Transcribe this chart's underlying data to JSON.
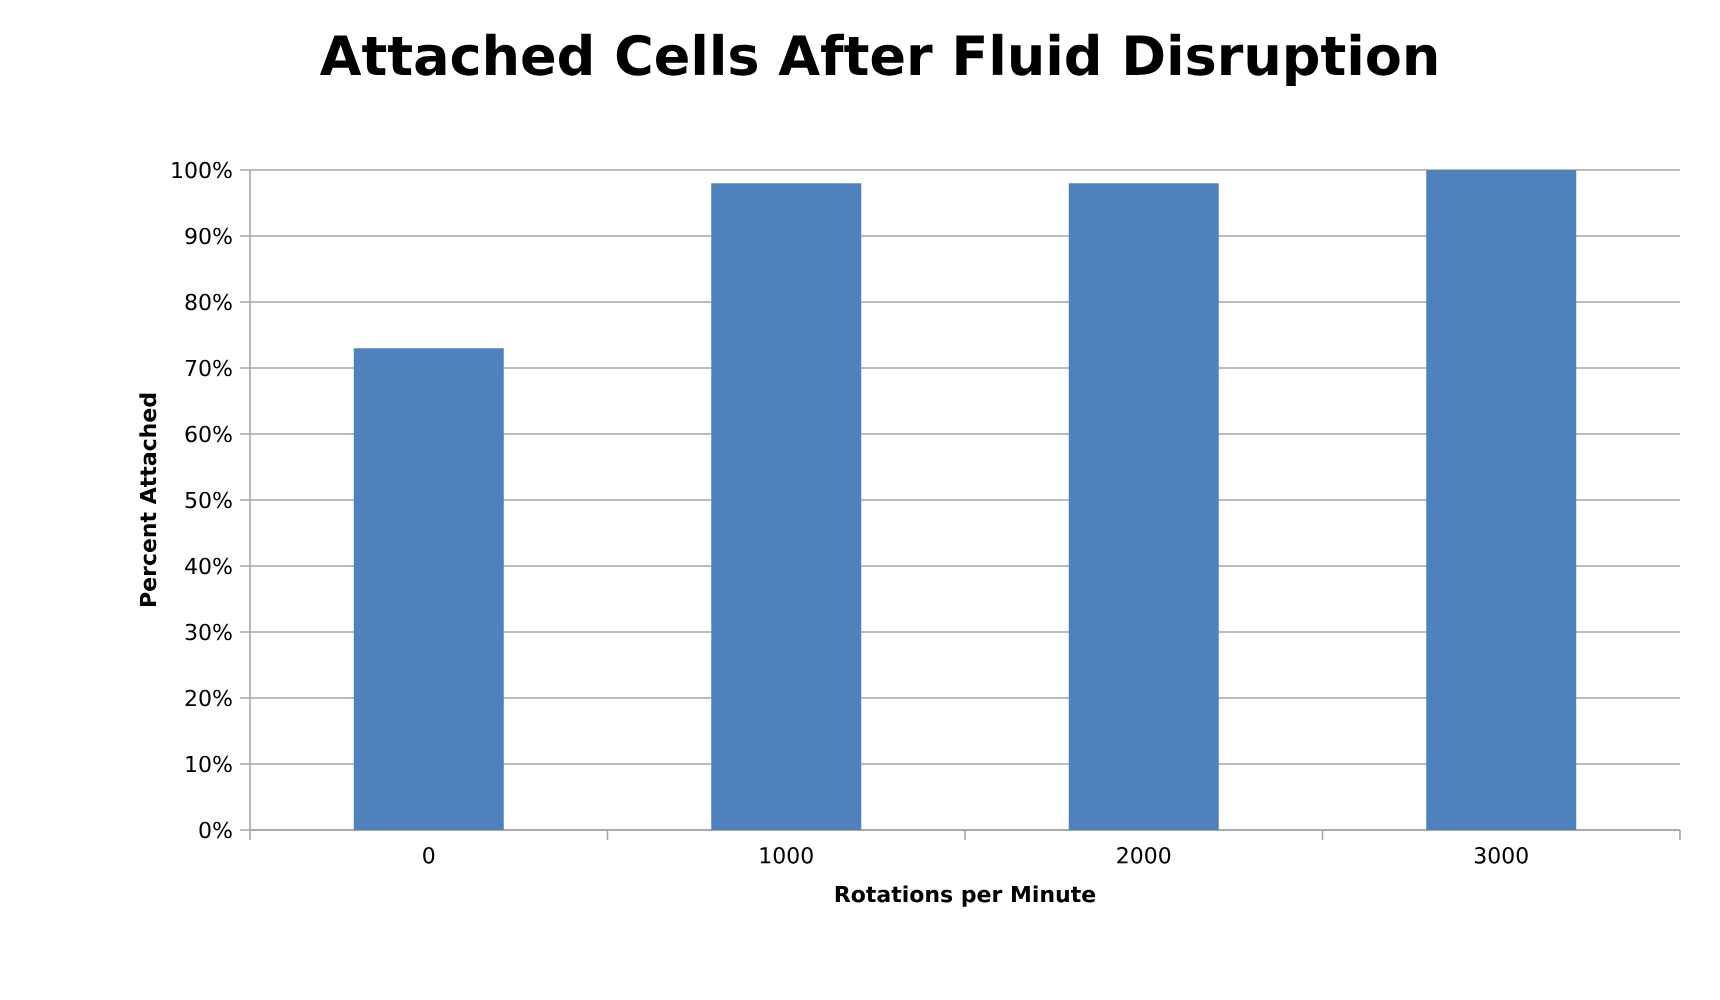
{
  "chart_data": {
    "type": "bar",
    "title": "Attached Cells After Fluid Disruption",
    "xlabel": "Rotations per Minute",
    "ylabel": "Percent Attached",
    "categories": [
      "0",
      "1000",
      "2000",
      "3000"
    ],
    "values": [
      73,
      98,
      98,
      100
    ],
    "color": "#4f81bd",
    "ylim": [
      0,
      100
    ],
    "yticks": [
      {
        "value": 0,
        "label": "0%"
      },
      {
        "value": 10,
        "label": "10%"
      },
      {
        "value": 20,
        "label": "20%"
      },
      {
        "value": 30,
        "label": "30%"
      },
      {
        "value": 40,
        "label": "40%"
      },
      {
        "value": 50,
        "label": "50%"
      },
      {
        "value": 60,
        "label": "60%"
      },
      {
        "value": 70,
        "label": "70%"
      },
      {
        "value": 80,
        "label": "80%"
      },
      {
        "value": 90,
        "label": "90%"
      },
      {
        "value": 100,
        "label": "100%"
      }
    ],
    "grid": "y"
  }
}
